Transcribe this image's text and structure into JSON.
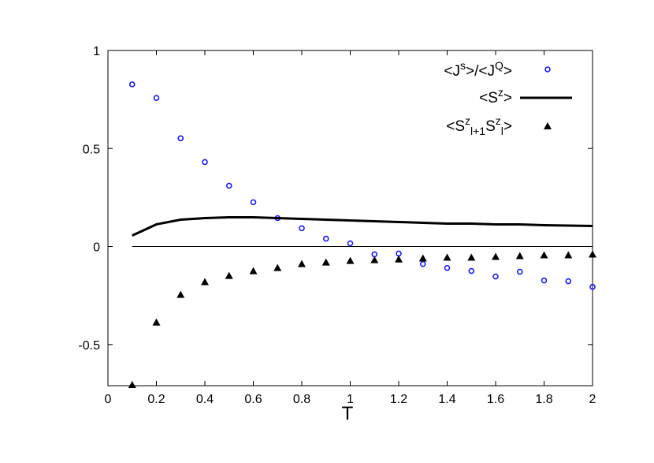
{
  "chart_data": {
    "type": "scatter",
    "x_label": "T",
    "xlim": [
      0,
      2
    ],
    "xticks": [
      0,
      0.2,
      0.4,
      0.6,
      0.8,
      1,
      1.2,
      1.4,
      1.6,
      1.8,
      2
    ],
    "ylim": [
      -0.71,
      1
    ],
    "yticks": [
      1,
      0.5,
      0,
      -0.5
    ],
    "zero_line": true,
    "legend": "top-right",
    "x": [
      0.1,
      0.2,
      0.3,
      0.4,
      0.5,
      0.6,
      0.7,
      0.8,
      0.9,
      1.0,
      1.1,
      1.2,
      1.3,
      1.4,
      1.5,
      1.6,
      1.7,
      1.8,
      1.9,
      2.0
    ],
    "series": [
      {
        "name": [
          {
            "text": "<J"
          },
          {
            "text": "s",
            "pos": "sup"
          },
          {
            "text": ">/<J"
          },
          {
            "text": "Q",
            "pos": "sup"
          },
          {
            "text": ">"
          }
        ],
        "marker": "ring",
        "color": "#1a1aff",
        "values": [
          0.827,
          0.758,
          0.552,
          0.431,
          0.31,
          0.226,
          0.145,
          0.093,
          0.04,
          0.016,
          -0.04,
          -0.036,
          -0.089,
          -0.109,
          -0.125,
          -0.153,
          -0.129,
          -0.173,
          -0.177,
          -0.206
        ]
      },
      {
        "name": [
          {
            "text": "<S"
          },
          {
            "text": "z",
            "pos": "sup"
          },
          {
            "text": ">"
          }
        ],
        "marker": "line",
        "color": "#000000",
        "values": [
          0.056,
          0.113,
          0.137,
          0.145,
          0.149,
          0.149,
          0.145,
          0.141,
          0.137,
          0.133,
          0.129,
          0.125,
          0.121,
          0.117,
          0.117,
          0.113,
          0.113,
          0.109,
          0.107,
          0.105
        ]
      },
      {
        "name": [
          {
            "text": "<S"
          },
          {
            "text": "z",
            "pos": "sup"
          },
          {
            "text": "l+1",
            "pos": "sub"
          },
          {
            "text": "S"
          },
          {
            "text": "z",
            "pos": "sup"
          },
          {
            "text": "l",
            "pos": "sub"
          },
          {
            "text": ">"
          }
        ],
        "marker": "triangle",
        "color": "#000000",
        "values": [
          -0.706,
          -0.387,
          -0.246,
          -0.181,
          -0.149,
          -0.125,
          -0.109,
          -0.089,
          -0.081,
          -0.073,
          -0.069,
          -0.065,
          -0.06,
          -0.056,
          -0.056,
          -0.052,
          -0.048,
          -0.044,
          -0.044,
          -0.04
        ]
      }
    ]
  }
}
